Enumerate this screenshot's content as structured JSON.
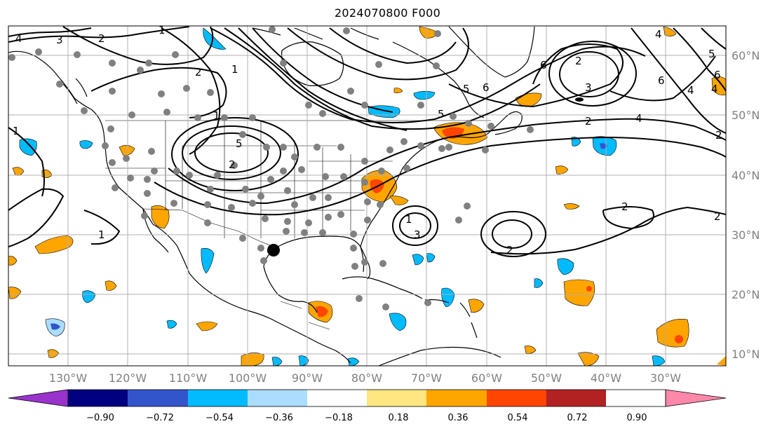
{
  "title": "2024070800 F000",
  "map": {
    "projection": "PlateCarree",
    "lon_range": [
      -140,
      -20
    ],
    "lat_range": [
      8,
      65
    ],
    "grid": true,
    "lon_ticks": [
      "130°W",
      "120°W",
      "110°W",
      "100°W",
      "90°W",
      "80°W",
      "70°W",
      "60°W",
      "50°W",
      "40°W",
      "30°W"
    ],
    "lat_ticks": [
      "10°N",
      "20°N",
      "30°N",
      "40°N",
      "50°N",
      "60°N"
    ],
    "contour_labels": [
      "4",
      "3",
      "2",
      "1",
      "2",
      "1",
      "1",
      "5",
      "2",
      "6",
      "3",
      "5",
      "6",
      "4",
      "2",
      "2",
      "5",
      "6",
      "4",
      "2",
      "1",
      "2",
      "1",
      "1",
      "3",
      "2",
      "2",
      "5",
      "4",
      "6",
      "4"
    ],
    "station_color": "#808080",
    "storm_marker": "large-black-dot",
    "colors": {
      "gridline": "#b0b0b0",
      "contour": "#000000",
      "land_outline": "#000000"
    }
  },
  "colorbar": {
    "tick_labels": [
      "−0.90",
      "−0.72",
      "−0.54",
      "−0.36",
      "−0.18",
      "0.18",
      "0.36",
      "0.54",
      "0.72",
      "0.90"
    ],
    "bins": [
      {
        "color": "#9933cc",
        "range": "< -0.90"
      },
      {
        "color": "#000080",
        "range": "-0.90 to -0.72"
      },
      {
        "color": "#3355cc",
        "range": "-0.72 to -0.54"
      },
      {
        "color": "#00bbff",
        "range": "-0.54 to -0.36"
      },
      {
        "color": "#aaddff",
        "range": "-0.36 to -0.18"
      },
      {
        "color": "#ffffff",
        "range": "-0.18 to 0.18"
      },
      {
        "color": "#ffe680",
        "range": "0.18 to 0.36"
      },
      {
        "color": "#ffa500",
        "range": "0.36 to 0.54"
      },
      {
        "color": "#ff4500",
        "range": "0.54 to 0.72"
      },
      {
        "color": "#b22222",
        "range": "0.72 to 0.90"
      },
      {
        "color": "#ff88aa",
        "range": "> 0.90"
      }
    ]
  }
}
